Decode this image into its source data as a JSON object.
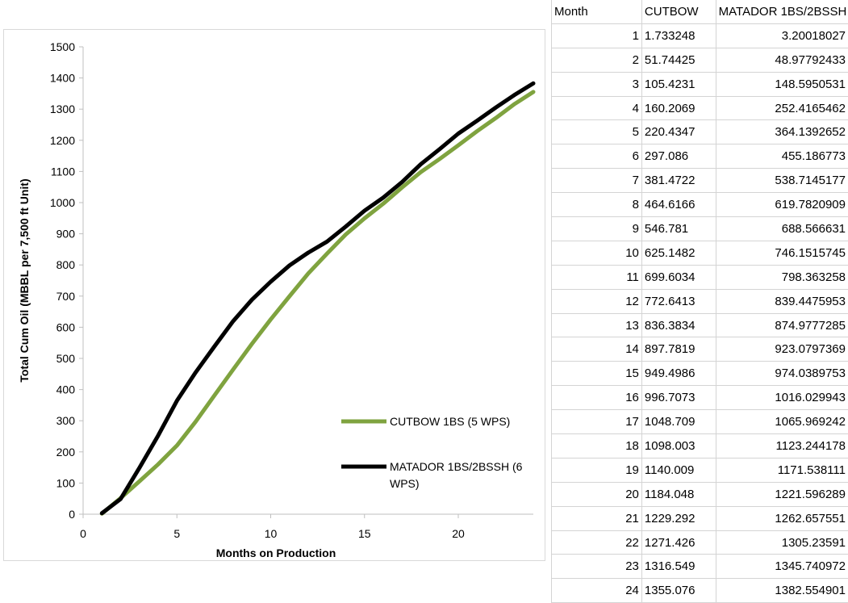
{
  "chart_data": {
    "type": "line",
    "xlabel": "Months on Production",
    "ylabel": "Total Cum Oil (MBBL per 7,500 ft Unit)",
    "xlim": [
      0,
      24
    ],
    "ylim": [
      0,
      1500
    ],
    "xticks": [
      0,
      5,
      10,
      15,
      20
    ],
    "yticks": [
      0,
      100,
      200,
      300,
      400,
      500,
      600,
      700,
      800,
      900,
      1000,
      1100,
      1200,
      1300,
      1400,
      1500
    ],
    "grid": false,
    "legend_position": "right",
    "x": [
      1,
      2,
      3,
      4,
      5,
      6,
      7,
      8,
      9,
      10,
      11,
      12,
      13,
      14,
      15,
      16,
      17,
      18,
      19,
      20,
      21,
      22,
      23,
      24
    ],
    "series": [
      {
        "name": "CUTBOW 1BS (5 WPS)",
        "color": "#7fa33f",
        "values": [
          1.733248,
          51.74425,
          105.4231,
          160.2069,
          220.4347,
          297.086,
          381.4722,
          464.6166,
          546.781,
          625.1482,
          699.6034,
          772.6413,
          836.3834,
          897.7819,
          949.4986,
          996.7073,
          1048.709,
          1098.003,
          1140.009,
          1184.048,
          1229.292,
          1271.426,
          1316.549,
          1355.076
        ]
      },
      {
        "name": "MATADOR 1BS/2BSSH (6 WPS)",
        "color": "#000000",
        "values": [
          3.20018027,
          48.97792433,
          148.5950531,
          252.4165462,
          364.1392652,
          455.186773,
          538.7145177,
          619.7820909,
          688.566631,
          746.1515745,
          798.363258,
          839.4475953,
          874.9777285,
          923.0797369,
          974.0389753,
          1016.029943,
          1065.969242,
          1123.244178,
          1171.538111,
          1221.596289,
          1262.657551,
          1305.23591,
          1345.740972,
          1382.554901
        ]
      }
    ]
  },
  "table": {
    "headers": [
      "Month",
      "CUTBOW",
      "MATADOR 1BS/2BSSH"
    ],
    "rows": [
      [
        "1",
        "1.733248",
        "3.20018027"
      ],
      [
        "2",
        "51.74425",
        "48.97792433"
      ],
      [
        "3",
        "105.4231",
        "148.5950531"
      ],
      [
        "4",
        "160.2069",
        "252.4165462"
      ],
      [
        "5",
        "220.4347",
        "364.1392652"
      ],
      [
        "6",
        "297.086",
        "455.186773"
      ],
      [
        "7",
        "381.4722",
        "538.7145177"
      ],
      [
        "8",
        "464.6166",
        "619.7820909"
      ],
      [
        "9",
        "546.781",
        "688.566631"
      ],
      [
        "10",
        "625.1482",
        "746.1515745"
      ],
      [
        "11",
        "699.6034",
        "798.363258"
      ],
      [
        "12",
        "772.6413",
        "839.4475953"
      ],
      [
        "13",
        "836.3834",
        "874.9777285"
      ],
      [
        "14",
        "897.7819",
        "923.0797369"
      ],
      [
        "15",
        "949.4986",
        "974.0389753"
      ],
      [
        "16",
        "996.7073",
        "1016.029943"
      ],
      [
        "17",
        "1048.709",
        "1065.969242"
      ],
      [
        "18",
        "1098.003",
        "1123.244178"
      ],
      [
        "19",
        "1140.009",
        "1171.538111"
      ],
      [
        "20",
        "1184.048",
        "1221.596289"
      ],
      [
        "21",
        "1229.292",
        "1262.657551"
      ],
      [
        "22",
        "1271.426",
        "1305.23591"
      ],
      [
        "23",
        "1316.549",
        "1345.740972"
      ],
      [
        "24",
        "1355.076",
        "1382.554901"
      ]
    ]
  }
}
